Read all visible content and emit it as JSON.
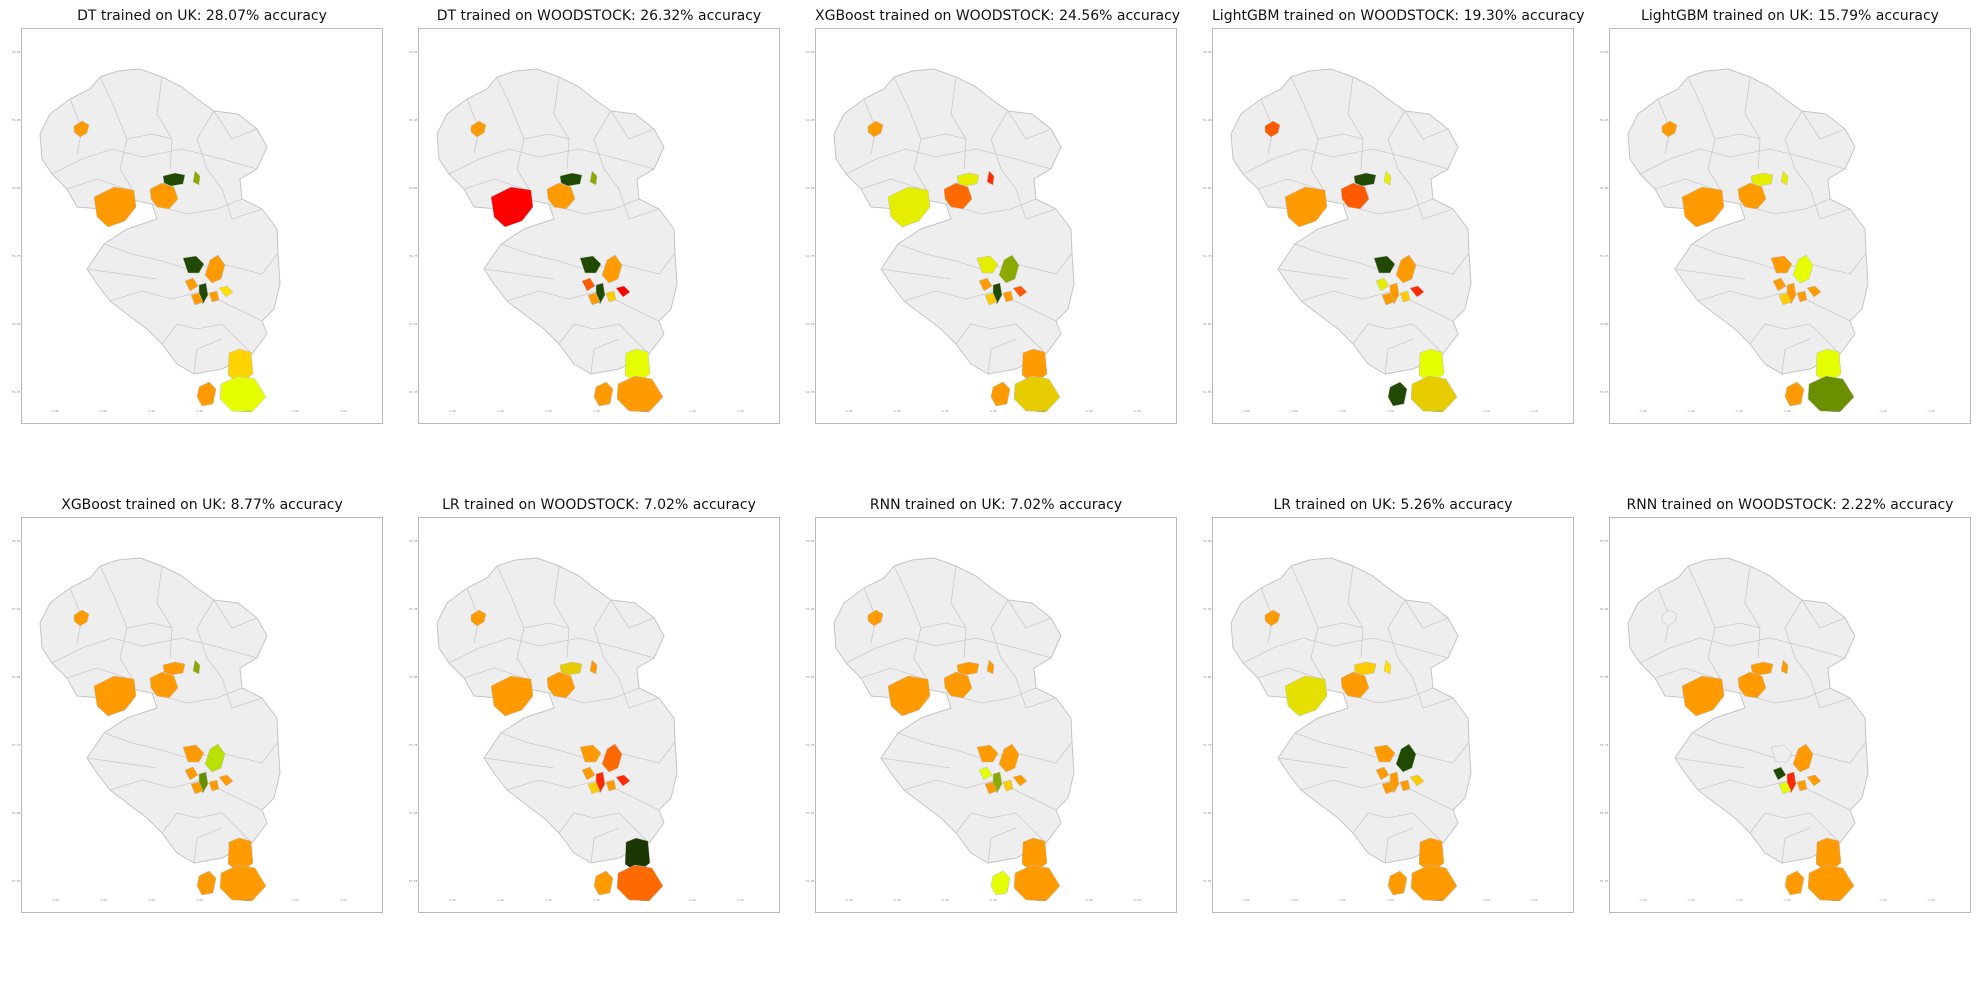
{
  "figure": {
    "panels": [
      {
        "id": "p1",
        "title": "DT trained on UK: 28.07% accuracy",
        "regions": {
          "nw": "#ff9a00",
          "w": "#ff9a00",
          "cl": "#ff9a00",
          "dk1": "#1f4a00",
          "ygn": "#8aaa00",
          "c1": "#1f4a00",
          "c2": "#ff9a00",
          "c3": "#ff9a00",
          "c4": "#1f4a00",
          "c5": "#ffe000",
          "c6": "#ff9a00",
          "c7": "#ff9a00",
          "s1": "#ffd400",
          "s2": "#e6ff00",
          "s3": "#ff9a00"
        }
      },
      {
        "id": "p2",
        "title": "DT trained on WOODSTOCK: 26.32% accuracy",
        "regions": {
          "nw": "#ff9a00",
          "w": "#ff0000",
          "cl": "#ff9a00",
          "dk1": "#1f4a00",
          "ygn": "#8aaa00",
          "c1": "#1f4a00",
          "c2": "#ff9a00",
          "c3": "#ff5a00",
          "c4": "#1f4a00",
          "c5": "#ff0000",
          "c6": "#ff9a00",
          "c7": "#ffcc00",
          "s1": "#e6ff00",
          "s2": "#ff9a00",
          "s3": "#ff9a00"
        }
      },
      {
        "id": "p3",
        "title": "XGBoost trained on WOODSTOCK: 24.56% accuracy",
        "regions": {
          "nw": "#ff9a00",
          "w": "#e6ee00",
          "cl": "#ff6a00",
          "dk1": "#e6ee00",
          "ygn": "#ff2a00",
          "c1": "#e6ee00",
          "c2": "#8aaa00",
          "c3": "#ff9a00",
          "c4": "#1f4a00",
          "c5": "#ff5a00",
          "c6": "#ffcc00",
          "c7": "#ff9a00",
          "s1": "#ff9a00",
          "s2": "#e6cc00",
          "s3": "#ff9a00"
        }
      },
      {
        "id": "p4",
        "title": "LightGBM trained on WOODSTOCK: 19.30% accuracy",
        "regions": {
          "nw": "#ff5a00",
          "w": "#ff9a00",
          "cl": "#ff5a00",
          "dk1": "#1f4a00",
          "ygn": "#e6ee00",
          "c1": "#1f4a00",
          "c2": "#ff9a00",
          "c3": "#e6ee00",
          "c4": "#ff9a00",
          "c5": "#ff2a00",
          "c6": "#ff9a00",
          "c7": "#ffcc00",
          "s1": "#e6ff00",
          "s2": "#e6cc00",
          "s3": "#1f4a00"
        }
      },
      {
        "id": "p5",
        "title": "LightGBM trained on UK: 15.79% accuracy",
        "regions": {
          "nw": "#ff9a00",
          "w": "#ff9a00",
          "cl": "#ff9a00",
          "dk1": "#e6ee00",
          "ygn": "#e6ee00",
          "c1": "#ff9a00",
          "c2": "#e6ff00",
          "c3": "#ff9a00",
          "c4": "#ff9a00",
          "c5": "#ff9a00",
          "c6": "#ffcc00",
          "c7": "#ff9a00",
          "s1": "#e6ff00",
          "s2": "#6a9000",
          "s3": "#ff9a00"
        }
      },
      {
        "id": "p6",
        "title": "XGBoost trained on UK: 8.77% accuracy",
        "regions": {
          "nw": "#ff9a00",
          "w": "#ff9a00",
          "cl": "#ff9a00",
          "dk1": "#ff9a00",
          "ygn": "#8aaa00",
          "c1": "#ff9a00",
          "c2": "#b8e000",
          "c3": "#ff9a00",
          "c4": "#6a9000",
          "c5": "#ff9a00",
          "c6": "#ff9a00",
          "c7": "#ff9a00",
          "s1": "#ff9a00",
          "s2": "#ff9a00",
          "s3": "#ff9a00"
        }
      },
      {
        "id": "p7",
        "title": "LR trained on WOODSTOCK: 7.02% accuracy",
        "regions": {
          "nw": "#ff9a00",
          "w": "#ff9a00",
          "cl": "#ff9a00",
          "dk1": "#e6cc00",
          "ygn": "#ff9a00",
          "c1": "#ff9a00",
          "c2": "#ff6a00",
          "c3": "#ff9a00",
          "c4": "#ff2a00",
          "c5": "#ff2a00",
          "c6": "#ffcc00",
          "c7": "#ff9a00",
          "s1": "#1a3800",
          "s2": "#ff6a00",
          "s3": "#ff9a00"
        }
      },
      {
        "id": "p8",
        "title": "RNN trained on UK: 7.02% accuracy",
        "regions": {
          "nw": "#ff9a00",
          "w": "#ff9a00",
          "cl": "#ff9a00",
          "dk1": "#ff9a00",
          "ygn": "#ff9a00",
          "c1": "#ff9a00",
          "c2": "#ff9a00",
          "c3": "#e6ff00",
          "c4": "#8aaa00",
          "c5": "#ff9a00",
          "c6": "#ff9a00",
          "c7": "#ffcc00",
          "s1": "#ff9a00",
          "s2": "#ff9a00",
          "s3": "#e6ff00"
        }
      },
      {
        "id": "p9",
        "title": "LR trained on UK: 5.26% accuracy",
        "regions": {
          "nw": "#ff9a00",
          "w": "#e6e000",
          "cl": "#ff9a00",
          "dk1": "#ffcc00",
          "ygn": "#ffe000",
          "c1": "#ff9a00",
          "c2": "#1f4a00",
          "c3": "#ff9a00",
          "c4": "#ff9a00",
          "c5": "#ffcc00",
          "c6": "#ff9a00",
          "c7": "#ff9a00",
          "s1": "#ff9a00",
          "s2": "#ff9a00",
          "s3": "#ff9a00"
        }
      },
      {
        "id": "p10",
        "title": "RNN trained on WOODSTOCK: 2.22% accuracy",
        "regions": {
          "nw": "#eeeeee",
          "w": "#ff9a00",
          "cl": "#ff9a00",
          "dk1": "#ff9a00",
          "ygn": "#ff9a00",
          "c1": "#eeeeee",
          "c2": "#ff9a00",
          "c3": "#1f4a00",
          "c4": "#ff2a00",
          "c5": "#ff9a00",
          "c6": "#e6ff00",
          "c7": "#ff9a00",
          "s1": "#ff9a00",
          "s2": "#ff9a00",
          "s3": "#ff9a00"
        }
      }
    ]
  }
}
